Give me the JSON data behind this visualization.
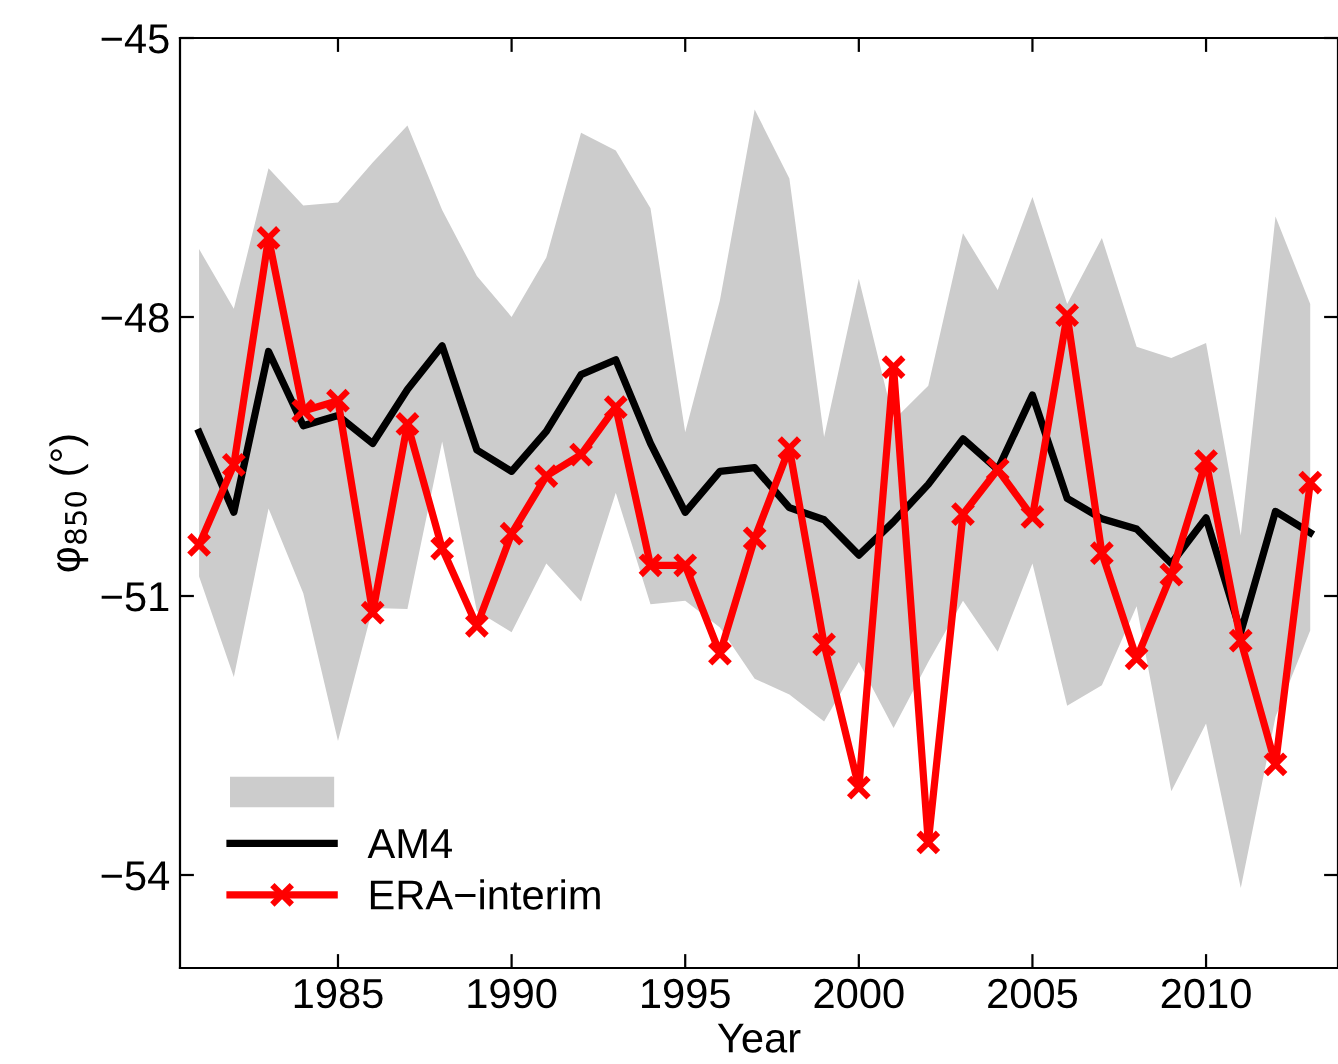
{
  "chart_data": {
    "type": "line",
    "xlabel": "Year",
    "ylabel": "φ$_{850}$ (°)",
    "xlim": [
      1980.45,
      2013.8
    ],
    "xticks": [
      1985,
      1990,
      1995,
      2000,
      2005,
      2010
    ],
    "ylim": [
      -55,
      -45
    ],
    "yticks": [
      -45,
      -48,
      -51,
      -54
    ],
    "grid": false,
    "legend": "bottom left",
    "series": [
      {
        "name": "AM4",
        "color": "#000000",
        "marker": "none",
        "x": [
          1981,
          1982,
          1983,
          1984,
          1985,
          1986,
          1987,
          1988,
          1989,
          1990,
          1991,
          1992,
          1993,
          1994,
          1995,
          1996,
          1997,
          1998,
          1999,
          2000,
          2001,
          2002,
          2003,
          2004,
          2005,
          2006,
          2007,
          2008,
          2009,
          2010,
          2011,
          2012,
          2013
        ],
        "values": [
          -49.24,
          -50.1,
          -48.37,
          -49.17,
          -49.06,
          -49.36,
          -48.78,
          -48.31,
          -49.43,
          -49.66,
          -49.23,
          -48.62,
          -48.46,
          -49.36,
          -50.1,
          -49.66,
          -49.62,
          -50.05,
          -50.18,
          -50.56,
          -50.2,
          -49.8,
          -49.31,
          -49.64,
          -48.84,
          -49.95,
          -50.17,
          -50.28,
          -50.65,
          -50.16,
          -51.39,
          -50.09,
          -50.32
        ],
        "upper": [
          -47.27,
          -47.91,
          -46.4,
          -46.8,
          -46.77,
          -46.34,
          -45.94,
          -46.85,
          -47.56,
          -48.0,
          -47.36,
          -46.02,
          -46.21,
          -46.83,
          -49.24,
          -47.82,
          -45.77,
          -46.51,
          -49.29,
          -47.59,
          -49.11,
          -48.74,
          -47.1,
          -47.71,
          -46.71,
          -47.86,
          -47.15,
          -48.32,
          -48.44,
          -48.28,
          -50.35,
          -46.92,
          -47.86
        ],
        "lower": [
          -50.79,
          -51.87,
          -50.06,
          -50.97,
          -52.56,
          -51.13,
          -51.14,
          -49.34,
          -51.16,
          -51.39,
          -50.65,
          -51.06,
          -49.89,
          -51.09,
          -51.05,
          -51.34,
          -51.89,
          -52.06,
          -52.35,
          -51.71,
          -52.42,
          -51.71,
          -51.05,
          -51.6,
          -50.65,
          -52.18,
          -51.96,
          -51.11,
          -53.1,
          -52.37,
          -54.14,
          -52.3,
          -51.37
        ]
      },
      {
        "name": "ERA−interim",
        "color": "#ff0000",
        "marker": "cross",
        "x": [
          1981,
          1982,
          1983,
          1984,
          1985,
          1986,
          1987,
          1988,
          1989,
          1990,
          1991,
          1992,
          1993,
          1994,
          1995,
          1996,
          1997,
          1998,
          1999,
          2000,
          2001,
          2002,
          2003,
          2004,
          2005,
          2006,
          2007,
          2008,
          2009,
          2010,
          2011,
          2012,
          2013
        ],
        "values": [
          -50.45,
          -49.59,
          -47.15,
          -49.01,
          -48.9,
          -51.18,
          -49.15,
          -50.49,
          -51.32,
          -50.33,
          -49.71,
          -49.48,
          -48.97,
          -50.67,
          -50.67,
          -51.62,
          -50.38,
          -49.41,
          -51.52,
          -53.06,
          -48.54,
          -53.65,
          -50.12,
          -49.64,
          -50.15,
          -47.98,
          -50.54,
          -51.67,
          -50.77,
          -49.55,
          -51.48,
          -52.81,
          -49.78
        ]
      }
    ]
  }
}
